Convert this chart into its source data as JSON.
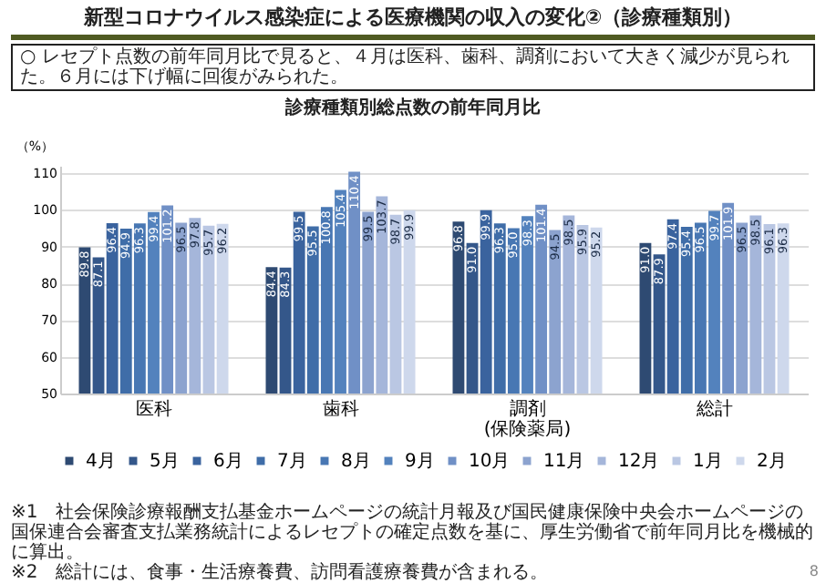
{
  "chart_data": {
    "type": "bar",
    "title": "新型コロナウイルス感染症による医療機関の収入の変化②（診療種類別）",
    "subtitle": "診療種類別総点数の前年同月比",
    "ylabel": "（%）",
    "categories": [
      "医科",
      "歯科",
      "調剤\n(保険薬局)",
      "総計"
    ],
    "series": [
      {
        "name": "4月",
        "color": "#2e4a72",
        "values": [
          89.8,
          84.4,
          96.8,
          91
        ],
        "value_labels": [
          "89.8",
          "84.4",
          "96.8",
          "91.0"
        ]
      },
      {
        "name": "5月",
        "color": "#34578a",
        "values": [
          87.1,
          84.3,
          91,
          87.9
        ],
        "value_labels": [
          "87.1",
          "84.3",
          "91.0",
          "87.9"
        ]
      },
      {
        "name": "6月",
        "color": "#3a639e",
        "values": [
          96.4,
          99.5,
          99.9,
          97.4
        ],
        "value_labels": [
          "96.4",
          "99.5",
          "99.9",
          "97.4"
        ]
      },
      {
        "name": "7月",
        "color": "#3f6da8",
        "values": [
          94.9,
          95.5,
          96.3,
          95.4
        ],
        "value_labels": [
          "94.9",
          "95.5",
          "96.3",
          "95.4"
        ]
      },
      {
        "name": "8月",
        "color": "#4877b3",
        "values": [
          96.3,
          100.8,
          95,
          96.5
        ],
        "value_labels": [
          "96.3",
          "100.8",
          "95.0",
          "96.5"
        ]
      },
      {
        "name": "9月",
        "color": "#5382bd",
        "values": [
          99.4,
          105.4,
          98.3,
          99.7
        ],
        "value_labels": [
          "99.4",
          "105.4",
          "98.3",
          "99.7"
        ]
      },
      {
        "name": "10月",
        "color": "#7090c6",
        "values": [
          101.2,
          110.4,
          101.4,
          101.9
        ],
        "value_labels": [
          "101.2",
          "110.4",
          "101.4",
          "101.9"
        ]
      },
      {
        "name": "11月",
        "color": "#8ca3cf",
        "values": [
          96.5,
          99.5,
          94.5,
          96.5
        ],
        "value_labels": [
          "96.5",
          "99.5",
          "94.5",
          "96.5"
        ]
      },
      {
        "name": "12月",
        "color": "#a5b6da",
        "values": [
          97.8,
          103.7,
          98.5,
          98.5
        ],
        "value_labels": [
          "97.8",
          "103.7",
          "98.5",
          "98.5"
        ]
      },
      {
        "name": "1月",
        "color": "#bac7e3",
        "values": [
          95.7,
          98.7,
          95.9,
          96.1
        ],
        "value_labels": [
          "95.7",
          "98.7",
          "95.9",
          "96.1"
        ]
      },
      {
        "name": "2月",
        "color": "#ced8ec",
        "values": [
          96.2,
          99.9,
          95.2,
          96.3
        ],
        "value_labels": [
          "96.2",
          "99.9",
          "95.2",
          "96.3"
        ]
      }
    ],
    "ylim": [
      50,
      112
    ],
    "yticks": [
      50,
      60,
      70,
      80,
      90,
      100,
      110
    ],
    "grid": "y",
    "legend": "bottom",
    "annotations": [
      "○ レセプト点数の前年同月比で見ると、４月は医科、歯科、調剤において大きく減少が見られた。６月には下げ幅に回復がみられた。",
      "※1　社会保険診療報酬支払基金ホームページの統計月報及び国民健康保険中央会ホームページの国保連合会審査支払業務統計によるレセプトの確定点数を基に、厚生労働省で前年同月比を機械的に算出。",
      "※2　総計には、食事・生活療養費、訪問看護療養費が含まれる。",
      "8"
    ]
  }
}
